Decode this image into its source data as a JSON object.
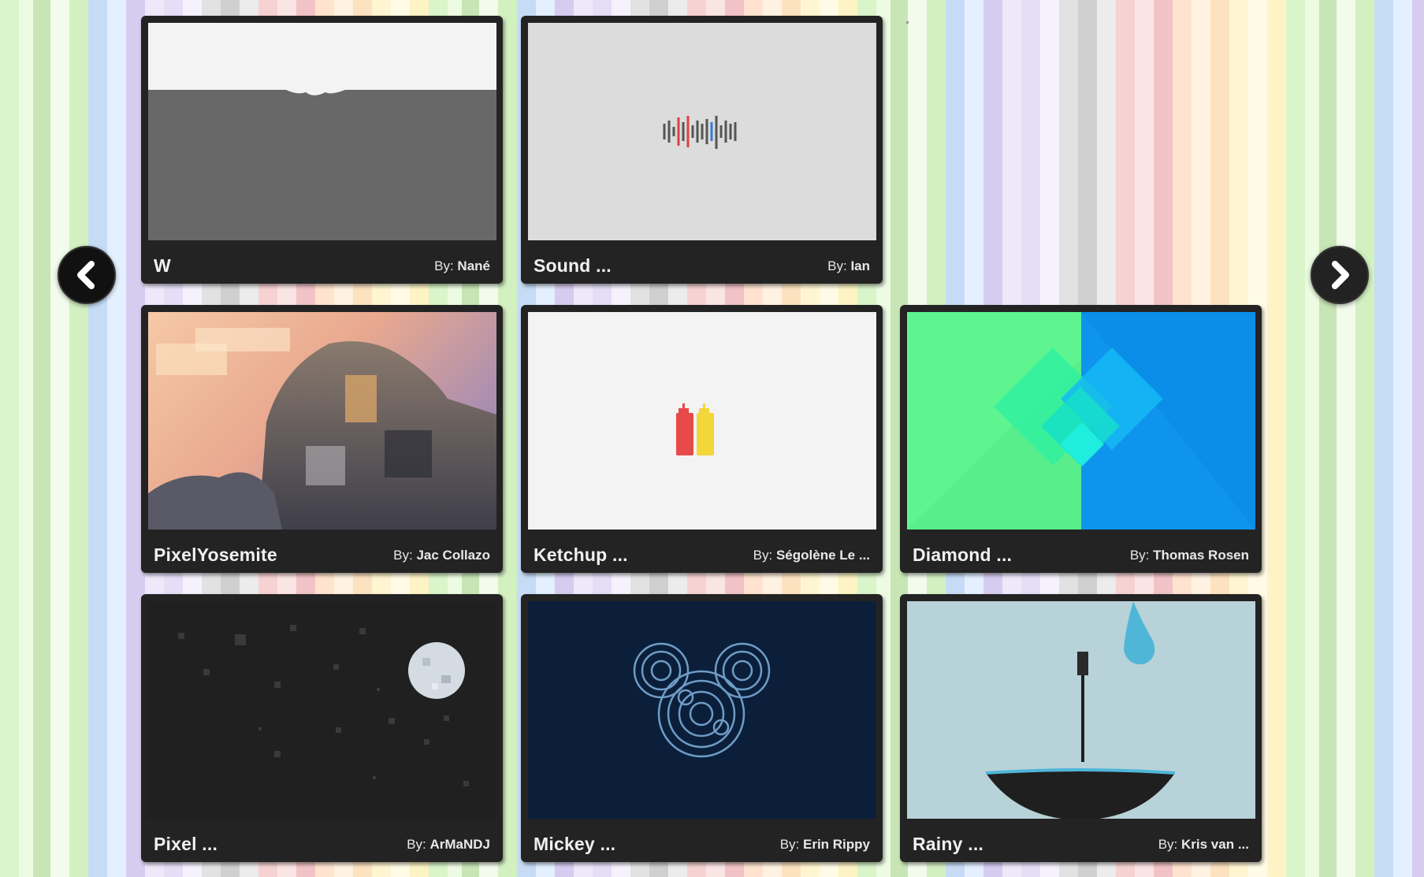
{
  "nav": {
    "prev_icon": "chevron-left-icon",
    "next_icon": "chevron-right-icon"
  },
  "cards": [
    {
      "title": "W",
      "by_label": "By:",
      "author": "Nané",
      "thumb": "w"
    },
    {
      "title": "Sound ...",
      "by_label": "By:",
      "author": "Ian",
      "thumb": "sound"
    },
    {
      "title": "PixelYosemite",
      "by_label": "By:",
      "author": "Jac Collazo",
      "thumb": "yosemite"
    },
    {
      "title": "Ketchup ...",
      "by_label": "By:",
      "author": "Ségolène Le ...",
      "thumb": "ketchup"
    },
    {
      "title": "Diamond ...",
      "by_label": "By:",
      "author": "Thomas Rosen",
      "thumb": "diamond"
    },
    {
      "title": "Pixel ...",
      "by_label": "By:",
      "author": "ArMaNDJ",
      "thumb": "pixelmoon"
    },
    {
      "title": "Mickey ...",
      "by_label": "By:",
      "author": "Erin Rippy",
      "thumb": "mickey"
    },
    {
      "title": "Rainy ...",
      "by_label": "By:",
      "author": "Kris van ...",
      "thumb": "rainy"
    }
  ]
}
